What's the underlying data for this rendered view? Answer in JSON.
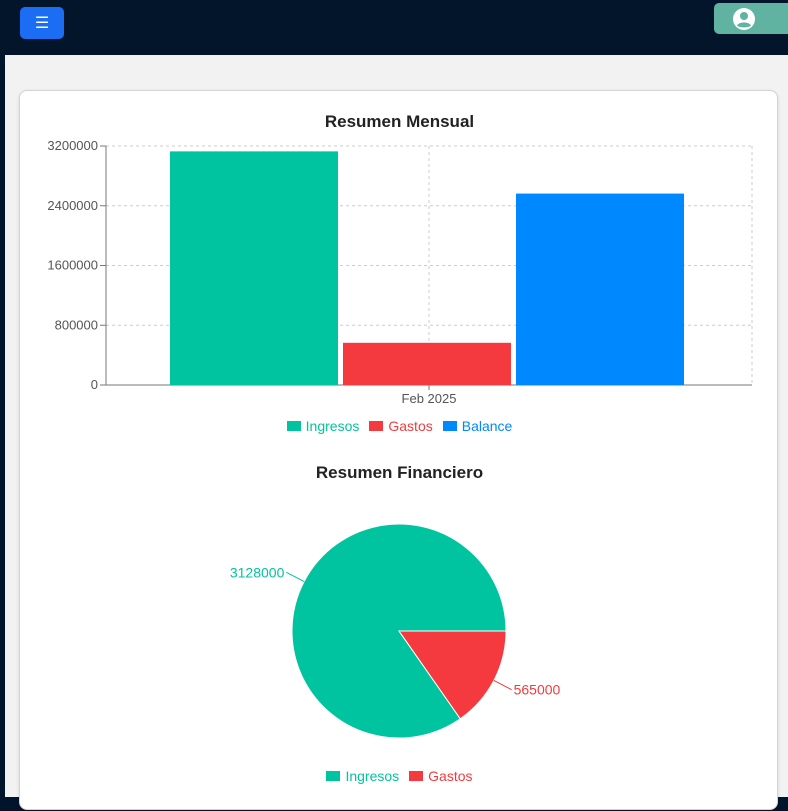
{
  "header": {
    "menu_icon": "hamburger-menu-icon",
    "user_icon": "user-circle-icon"
  },
  "colors": {
    "ingresos": "#00c49f",
    "gastos": "#f43a3e",
    "balance": "#0088fe"
  },
  "chart_data": [
    {
      "type": "bar",
      "title": "Resumen Mensual",
      "categories": [
        "Feb 2025"
      ],
      "series": [
        {
          "name": "Ingresos",
          "values": [
            3128000
          ],
          "color": "#00c49f"
        },
        {
          "name": "Gastos",
          "values": [
            565000
          ],
          "color": "#f43a3e"
        },
        {
          "name": "Balance",
          "values": [
            2563000
          ],
          "color": "#0088fe"
        }
      ],
      "yticks": [
        "0",
        "800000",
        "1600000",
        "2400000",
        "3200000"
      ],
      "ylim": [
        0,
        3200000
      ],
      "grid": true,
      "legend": "bottom"
    },
    {
      "type": "pie",
      "title": "Resumen Financiero",
      "labels": [
        "Ingresos",
        "Gastos"
      ],
      "values": [
        3128000,
        565000
      ],
      "value_labels": [
        "3128000",
        "565000"
      ],
      "colors": [
        "#00c49f",
        "#f43a3e"
      ],
      "legend": "bottom"
    }
  ]
}
